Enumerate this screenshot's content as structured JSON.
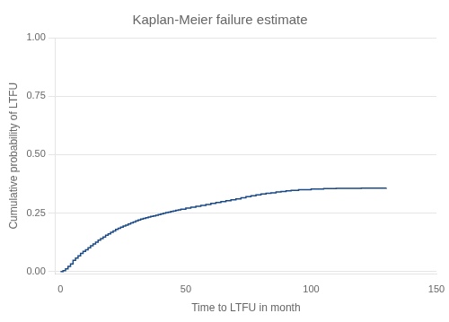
{
  "chart_data": {
    "type": "step",
    "title": "Kaplan-Meier failure estimate",
    "xlabel": "Time to LTFU in month",
    "ylabel": "Cumulative probability of LTFU",
    "x": [
      0,
      1,
      2,
      3,
      4,
      5,
      6,
      7,
      8,
      9,
      10,
      11,
      12,
      13,
      14,
      15,
      16,
      17,
      18,
      19,
      20,
      21,
      22,
      23,
      24,
      25,
      26,
      27,
      28,
      29,
      30,
      31,
      32,
      33,
      34,
      35,
      36,
      37,
      38,
      39,
      40,
      41,
      42,
      43,
      44,
      45,
      46,
      47,
      48,
      50,
      52,
      54,
      56,
      58,
      60,
      62,
      64,
      66,
      68,
      70,
      72,
      74,
      76,
      78,
      80,
      82,
      84,
      86,
      88,
      90,
      92,
      95,
      100,
      105,
      110,
      120,
      130
    ],
    "values": [
      0.0,
      0.004,
      0.012,
      0.022,
      0.033,
      0.048,
      0.058,
      0.067,
      0.078,
      0.086,
      0.093,
      0.102,
      0.11,
      0.118,
      0.126,
      0.134,
      0.141,
      0.148,
      0.155,
      0.161,
      0.168,
      0.174,
      0.18,
      0.185,
      0.19,
      0.195,
      0.199,
      0.203,
      0.208,
      0.212,
      0.217,
      0.221,
      0.224,
      0.227,
      0.23,
      0.233,
      0.236,
      0.238,
      0.241,
      0.244,
      0.247,
      0.249,
      0.252,
      0.254,
      0.257,
      0.259,
      0.262,
      0.264,
      0.267,
      0.271,
      0.275,
      0.279,
      0.283,
      0.287,
      0.292,
      0.295,
      0.299,
      0.303,
      0.307,
      0.311,
      0.316,
      0.32,
      0.324,
      0.328,
      0.332,
      0.335,
      0.337,
      0.34,
      0.342,
      0.345,
      0.347,
      0.35,
      0.353,
      0.355,
      0.356,
      0.357,
      0.358
    ],
    "color": "#1a4a87",
    "xlim": [
      -2,
      150
    ],
    "ylim": [
      -0.01,
      1.0
    ],
    "xticks": [
      0,
      50,
      100,
      150
    ],
    "yticks": [
      {
        "value": 0.0,
        "label": "0.00"
      },
      {
        "value": 0.25,
        "label": "0.25"
      },
      {
        "value": 0.5,
        "label": "0.50"
      },
      {
        "value": 0.75,
        "label": "0.75"
      },
      {
        "value": 1.0,
        "label": "1.00"
      }
    ],
    "grid": "y"
  }
}
